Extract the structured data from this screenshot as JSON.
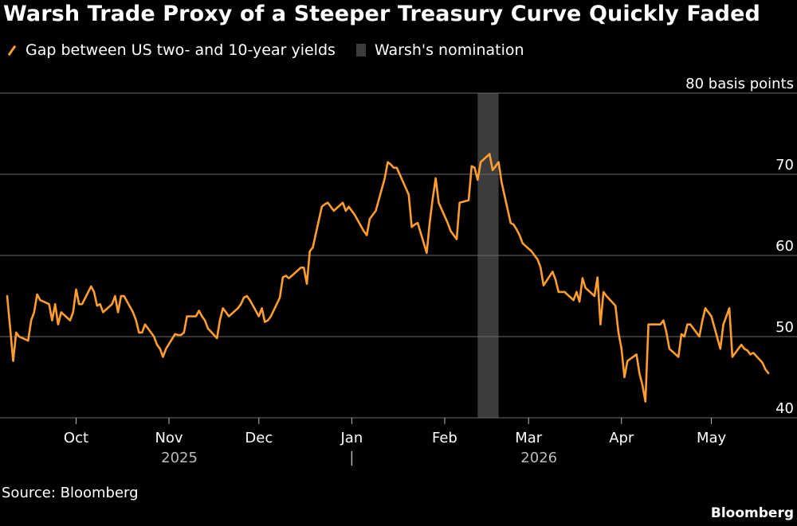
{
  "title": "Warsh Trade Proxy of a Steeper Treasury Curve Quickly Faded",
  "source": "Source: Bloomberg",
  "brand": "Bloomberg",
  "colors": {
    "line": "#ff9e2e",
    "shade": "#3c3c3c",
    "grid": "#6a6a6a",
    "background": "#000000"
  },
  "chart_data": {
    "type": "line",
    "title": "Warsh Trade Proxy of a Steeper Treasury Curve Quickly Faded",
    "ylabel": "basis points",
    "ylim": [
      40,
      80
    ],
    "yticks": [
      40,
      50,
      60,
      70,
      80
    ],
    "ytick_labels": [
      "40",
      "50",
      "60",
      "70",
      "80 basis points"
    ],
    "y_axis_position": "right",
    "grid": true,
    "legend_position": "top-left",
    "series": [
      {
        "name": "Gap between US two- and 10-year yields",
        "points": [
          [
            "2025-09-08",
            55.0
          ],
          [
            "2025-09-09",
            51.0
          ],
          [
            "2025-09-10",
            47.0
          ],
          [
            "2025-09-11",
            50.5
          ],
          [
            "2025-09-12",
            50.0
          ],
          [
            "2025-09-15",
            49.5
          ],
          [
            "2025-09-16",
            52.0
          ],
          [
            "2025-09-17",
            53.0
          ],
          [
            "2025-09-18",
            55.2
          ],
          [
            "2025-09-19",
            54.5
          ],
          [
            "2025-09-22",
            54.0
          ],
          [
            "2025-09-23",
            52.0
          ],
          [
            "2025-09-24",
            54.0
          ],
          [
            "2025-09-25",
            51.5
          ],
          [
            "2025-09-26",
            53.0
          ],
          [
            "2025-09-29",
            52.0
          ],
          [
            "2025-09-30",
            53.0
          ],
          [
            "2025-10-01",
            55.8
          ],
          [
            "2025-10-02",
            54.0
          ],
          [
            "2025-10-03",
            54.0
          ],
          [
            "2025-10-06",
            56.2
          ],
          [
            "2025-10-07",
            55.5
          ],
          [
            "2025-10-08",
            53.8
          ],
          [
            "2025-10-09",
            54.0
          ],
          [
            "2025-10-10",
            53.0
          ],
          [
            "2025-10-13",
            54.0
          ],
          [
            "2025-10-14",
            55.0
          ],
          [
            "2025-10-15",
            53.0
          ],
          [
            "2025-10-16",
            55.0
          ],
          [
            "2025-10-17",
            55.0
          ],
          [
            "2025-10-20",
            53.0
          ],
          [
            "2025-10-21",
            52.0
          ],
          [
            "2025-10-22",
            50.5
          ],
          [
            "2025-10-23",
            50.5
          ],
          [
            "2025-10-24",
            51.5
          ],
          [
            "2025-10-27",
            50.0
          ],
          [
            "2025-10-28",
            49.0
          ],
          [
            "2025-10-29",
            48.5
          ],
          [
            "2025-10-30",
            47.5
          ],
          [
            "2025-10-31",
            48.5
          ],
          [
            "2025-11-03",
            50.3
          ],
          [
            "2025-11-04",
            50.2
          ],
          [
            "2025-11-05",
            50.2
          ],
          [
            "2025-11-06",
            50.5
          ],
          [
            "2025-11-07",
            52.5
          ],
          [
            "2025-11-10",
            52.5
          ],
          [
            "2025-11-11",
            53.2
          ],
          [
            "2025-11-12",
            52.5
          ],
          [
            "2025-11-13",
            52.0
          ],
          [
            "2025-11-14",
            51.0
          ],
          [
            "2025-11-17",
            49.8
          ],
          [
            "2025-11-18",
            52.0
          ],
          [
            "2025-11-19",
            53.5
          ],
          [
            "2025-11-20",
            53.0
          ],
          [
            "2025-11-21",
            52.5
          ],
          [
            "2025-11-24",
            53.5
          ],
          [
            "2025-11-25",
            54.0
          ],
          [
            "2025-11-26",
            54.8
          ],
          [
            "2025-11-27",
            55.0
          ],
          [
            "2025-11-28",
            54.5
          ],
          [
            "2025-12-01",
            52.5
          ],
          [
            "2025-12-02",
            53.5
          ],
          [
            "2025-12-03",
            51.8
          ],
          [
            "2025-12-04",
            52.0
          ],
          [
            "2025-12-05",
            52.5
          ],
          [
            "2025-12-08",
            54.8
          ],
          [
            "2025-12-09",
            57.3
          ],
          [
            "2025-12-10",
            57.5
          ],
          [
            "2025-12-11",
            57.2
          ],
          [
            "2025-12-12",
            57.5
          ],
          [
            "2025-12-15",
            58.5
          ],
          [
            "2025-12-16",
            58.5
          ],
          [
            "2025-12-17",
            56.5
          ],
          [
            "2025-12-18",
            60.5
          ],
          [
            "2025-12-19",
            61.0
          ],
          [
            "2025-12-22",
            66.0
          ],
          [
            "2025-12-23",
            66.3
          ],
          [
            "2025-12-24",
            66.5
          ],
          [
            "2025-12-26",
            65.5
          ],
          [
            "2025-12-29",
            66.5
          ],
          [
            "2025-12-30",
            65.5
          ],
          [
            "2025-12-31",
            66.0
          ],
          [
            "2026-01-02",
            65.0
          ],
          [
            "2026-01-05",
            63.0
          ],
          [
            "2026-01-06",
            62.5
          ],
          [
            "2026-01-07",
            64.5
          ],
          [
            "2026-01-08",
            65.0
          ],
          [
            "2026-01-09",
            65.5
          ],
          [
            "2026-01-12",
            69.5
          ],
          [
            "2026-01-13",
            71.5
          ],
          [
            "2026-01-14",
            71.2
          ],
          [
            "2026-01-15",
            70.8
          ],
          [
            "2026-01-16",
            70.8
          ],
          [
            "2026-01-20",
            67.5
          ],
          [
            "2026-01-21",
            63.5
          ],
          [
            "2026-01-22",
            63.8
          ],
          [
            "2026-01-23",
            64.0
          ],
          [
            "2026-01-26",
            60.3
          ],
          [
            "2026-01-27",
            64.0
          ],
          [
            "2026-01-28",
            67.0
          ],
          [
            "2026-01-29",
            69.5
          ],
          [
            "2026-01-30",
            66.5
          ],
          [
            "2026-02-02",
            64.0
          ],
          [
            "2026-02-03",
            63.0
          ],
          [
            "2026-02-04",
            62.5
          ],
          [
            "2026-02-05",
            62.0
          ],
          [
            "2026-02-06",
            66.5
          ],
          [
            "2026-02-09",
            66.8
          ],
          [
            "2026-02-10",
            71.0
          ],
          [
            "2026-02-11",
            70.8
          ],
          [
            "2026-02-12",
            69.3
          ],
          [
            "2026-02-13",
            71.5
          ],
          [
            "2026-02-16",
            72.5
          ],
          [
            "2026-02-17",
            70.5
          ],
          [
            "2026-02-18",
            71.0
          ],
          [
            "2026-02-19",
            71.5
          ],
          [
            "2026-02-20",
            69.0
          ],
          [
            "2026-02-23",
            64.0
          ],
          [
            "2026-02-24",
            63.8
          ],
          [
            "2026-02-25",
            63.2
          ],
          [
            "2026-02-26",
            62.5
          ],
          [
            "2026-02-27",
            61.5
          ],
          [
            "2026-03-02",
            60.5
          ],
          [
            "2026-03-03",
            60.0
          ],
          [
            "2026-03-04",
            59.5
          ],
          [
            "2026-03-05",
            58.5
          ],
          [
            "2026-03-06",
            56.3
          ],
          [
            "2026-03-09",
            58.0
          ],
          [
            "2026-03-10",
            57.0
          ],
          [
            "2026-03-11",
            55.5
          ],
          [
            "2026-03-12",
            55.5
          ],
          [
            "2026-03-13",
            55.5
          ],
          [
            "2026-03-16",
            54.5
          ],
          [
            "2026-03-17",
            55.5
          ],
          [
            "2026-03-18",
            54.3
          ],
          [
            "2026-03-19",
            57.2
          ],
          [
            "2026-03-20",
            56.0
          ],
          [
            "2026-03-23",
            55.0
          ],
          [
            "2026-03-24",
            57.3
          ],
          [
            "2026-03-25",
            51.5
          ],
          [
            "2026-03-26",
            55.5
          ],
          [
            "2026-03-27",
            55.0
          ],
          [
            "2026-03-30",
            53.8
          ],
          [
            "2026-03-31",
            50.5
          ],
          [
            "2026-04-01",
            48.5
          ],
          [
            "2026-04-02",
            45.0
          ],
          [
            "2026-04-03",
            47.0
          ],
          [
            "2026-04-06",
            47.8
          ],
          [
            "2026-04-07",
            45.5
          ],
          [
            "2026-04-08",
            44.0
          ],
          [
            "2026-04-09",
            42.0
          ],
          [
            "2026-04-10",
            51.5
          ],
          [
            "2026-04-13",
            51.5
          ],
          [
            "2026-04-14",
            51.5
          ],
          [
            "2026-04-15",
            52.0
          ],
          [
            "2026-04-16",
            50.5
          ],
          [
            "2026-04-17",
            48.5
          ],
          [
            "2026-04-20",
            47.5
          ],
          [
            "2026-04-21",
            50.3
          ],
          [
            "2026-04-22",
            50.0
          ],
          [
            "2026-04-23",
            51.5
          ],
          [
            "2026-04-24",
            51.5
          ],
          [
            "2026-04-27",
            50.0
          ],
          [
            "2026-04-28",
            52.0
          ],
          [
            "2026-04-29",
            53.5
          ],
          [
            "2026-04-30",
            53.0
          ],
          [
            "2026-05-01",
            52.5
          ],
          [
            "2026-05-04",
            48.5
          ],
          [
            "2026-05-05",
            51.5
          ],
          [
            "2026-05-06",
            52.5
          ],
          [
            "2026-05-07",
            53.5
          ],
          [
            "2026-05-08",
            47.5
          ],
          [
            "2026-05-11",
            49.0
          ],
          [
            "2026-05-12",
            48.5
          ],
          [
            "2026-05-13",
            48.3
          ],
          [
            "2026-05-14",
            47.8
          ],
          [
            "2026-05-15",
            48.0
          ],
          [
            "2026-05-18",
            46.8
          ],
          [
            "2026-05-19",
            46.0
          ],
          [
            "2026-05-20",
            45.5
          ]
        ]
      }
    ],
    "highlight": {
      "name": "Warsh's nomination",
      "start": "2026-02-12",
      "end": "2026-02-19"
    },
    "xticks": [
      {
        "date": "2025-10-01",
        "label": "Oct"
      },
      {
        "date": "2025-11-01",
        "label": "Nov"
      },
      {
        "date": "2025-12-01",
        "label": "Dec"
      },
      {
        "date": "2026-01-01",
        "label": "Jan"
      },
      {
        "date": "2026-02-01",
        "label": "Feb"
      },
      {
        "date": "2026-03-01",
        "label": "Mar"
      },
      {
        "date": "2026-04-01",
        "label": "Apr"
      },
      {
        "date": "2026-05-01",
        "label": "May"
      }
    ],
    "year_labels": [
      {
        "date": "2025-11-01",
        "label": "2025"
      },
      {
        "date": "2026-03-01",
        "label": "2026"
      }
    ],
    "year_divider": "2026-01-01",
    "xlim": [
      "2025-09-08",
      "2026-05-20"
    ]
  }
}
